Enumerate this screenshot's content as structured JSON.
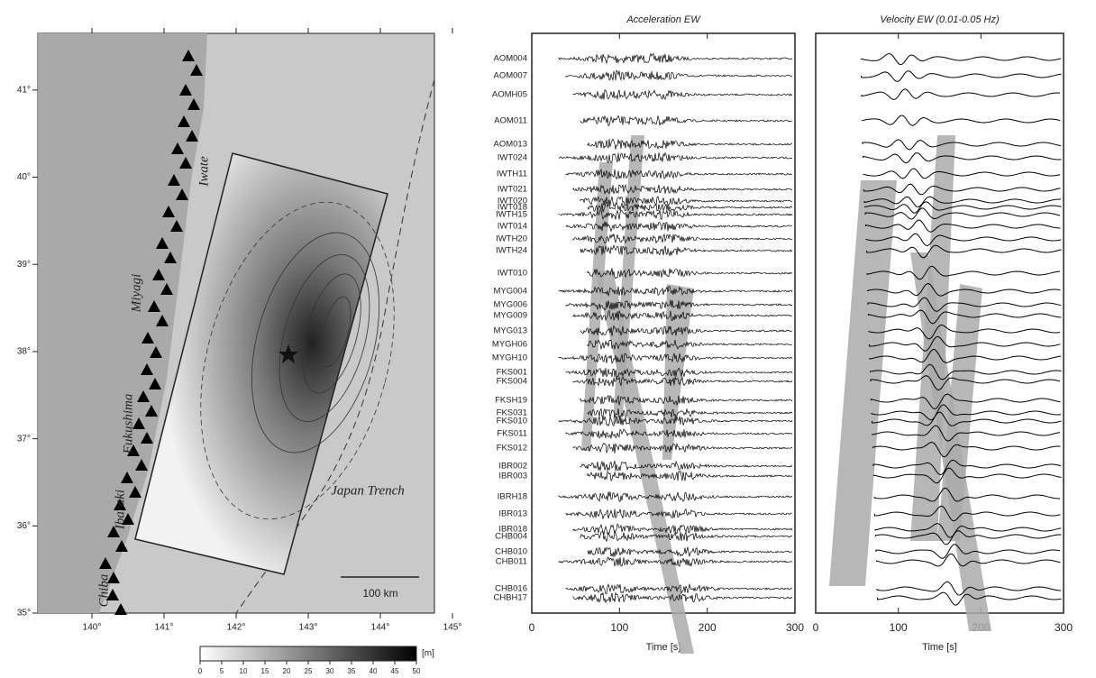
{
  "map": {
    "lonlim": [
      139.25,
      144.75
    ],
    "latlim": [
      35,
      41.65
    ],
    "lon_ticks": [
      {
        "value": 140,
        "label": "140°"
      },
      {
        "value": 141,
        "label": "141°"
      },
      {
        "value": 142,
        "label": "142°"
      },
      {
        "value": 143,
        "label": "143°"
      },
      {
        "value": 144,
        "label": "144°"
      },
      {
        "value": 145,
        "label": "145°"
      }
    ],
    "lat_ticks": [
      {
        "value": 35,
        "label": "35°"
      },
      {
        "value": 36,
        "label": "36°"
      },
      {
        "value": 37,
        "label": "37°"
      },
      {
        "value": 38,
        "label": "38°"
      },
      {
        "value": 39,
        "label": "39°"
      },
      {
        "value": 40,
        "label": "40°"
      },
      {
        "value": 41,
        "label": "41°"
      }
    ],
    "labels": [
      "Iwate",
      "Miyagi",
      "Fukushima",
      "Ibaraki",
      "Chiba",
      "Japan Trench"
    ],
    "scale_bar": "100 km"
  },
  "colorbar": {
    "ticks": [
      0,
      5,
      10,
      15,
      20,
      25,
      30,
      35,
      40,
      45,
      50
    ],
    "unit": "[m]"
  },
  "panels": [
    {
      "title": "Acceleration EW",
      "xlabel": "Time [s]",
      "xlim": [
        0,
        300
      ],
      "xticks": [
        0,
        100,
        200,
        300
      ]
    },
    {
      "title": "Velocity EW (0.01-0.05 Hz)",
      "xlabel": "Time [s]",
      "xlim": [
        0,
        300
      ],
      "xticks": [
        0,
        100,
        200,
        300
      ]
    }
  ],
  "stations": [
    "AOM004",
    "AOM007",
    "AOMH05",
    "AOM011",
    "AOM013",
    "IWT024",
    "IWTH11",
    "IWT021",
    "IWT020",
    "IWT018",
    "IWTH15",
    "IWT014",
    "IWTH20",
    "IWTH24",
    "IWT010",
    "MYG004",
    "MYG006",
    "MYG009",
    "MYG013",
    "MYGH06",
    "MYGH10",
    "FKS001",
    "FKS004",
    "FKSH19",
    "FKS031",
    "FKS010",
    "FKS011",
    "FKS012",
    "IBR002",
    "IBR003",
    "IBRH18",
    "IBR013",
    "IBR018",
    "CHB004",
    "CHB010",
    "CHB011",
    "CHB016",
    "CHBH17"
  ]
}
